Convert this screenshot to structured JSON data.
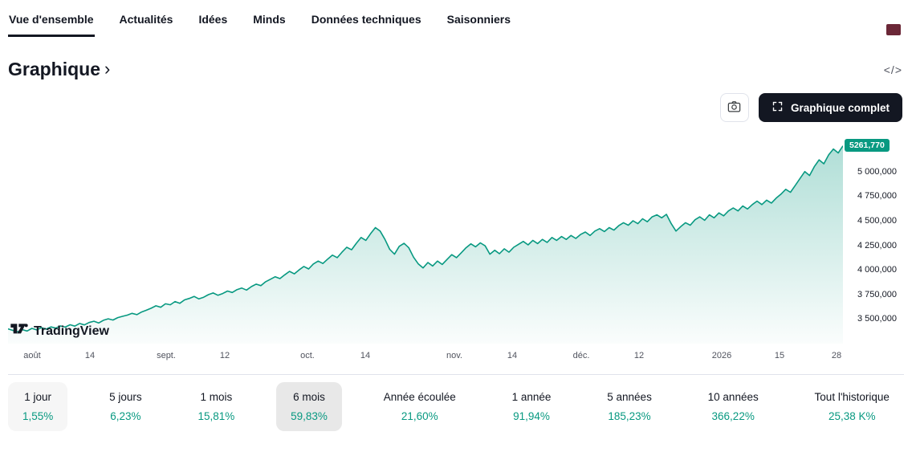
{
  "colors": {
    "accent": "#089981",
    "selected_bg": "#e8e8e8",
    "scroll_indicator": "#6b2737",
    "button_dark": "#131722"
  },
  "nav": {
    "tabs": [
      {
        "label": "Vue d'ensemble",
        "active": true
      },
      {
        "label": "Actualités",
        "active": false
      },
      {
        "label": "Idées",
        "active": false
      },
      {
        "label": "Minds",
        "active": false
      },
      {
        "label": "Données techniques",
        "active": false
      },
      {
        "label": "Saisonniers",
        "active": false
      }
    ]
  },
  "header": {
    "title": "Graphique",
    "chevron": "›",
    "code_icon": "</>"
  },
  "toolbar": {
    "camera_icon": "camera-icon",
    "full_chart_label": "Graphique complet"
  },
  "chart_data": {
    "type": "area",
    "watermark": "TradingView",
    "last_price": 5261.77,
    "last_price_label": "5261,770",
    "line_color": "#089981",
    "ylim": [
      3250,
      5390
    ],
    "grid": false,
    "y_ticks": [
      {
        "value": 5000,
        "label": "5 000,000"
      },
      {
        "value": 4750,
        "label": "4 750,000"
      },
      {
        "value": 4500,
        "label": "4 500,000"
      },
      {
        "value": 4250,
        "label": "4 250,000"
      },
      {
        "value": 4000,
        "label": "4 000,000"
      },
      {
        "value": 3750,
        "label": "3 750,000"
      },
      {
        "value": 3500,
        "label": "3 500,000"
      }
    ],
    "x_ticks": [
      {
        "label": "août",
        "pos": 0.029
      },
      {
        "label": "14",
        "pos": 0.098
      },
      {
        "label": "sept.",
        "pos": 0.189
      },
      {
        "label": "12",
        "pos": 0.26
      },
      {
        "label": "oct.",
        "pos": 0.359
      },
      {
        "label": "14",
        "pos": 0.428
      },
      {
        "label": "nov.",
        "pos": 0.535
      },
      {
        "label": "14",
        "pos": 0.604
      },
      {
        "label": "déc.",
        "pos": 0.687
      },
      {
        "label": "12",
        "pos": 0.756
      },
      {
        "label": "2026",
        "pos": 0.855
      },
      {
        "label": "15",
        "pos": 0.924
      },
      {
        "label": "28",
        "pos": 0.992
      }
    ],
    "values": [
      3400,
      3385,
      3370,
      3392,
      3378,
      3405,
      3390,
      3412,
      3398,
      3420,
      3408,
      3430,
      3418,
      3442,
      3428,
      3455,
      3440,
      3465,
      3478,
      3460,
      3488,
      3502,
      3490,
      3515,
      3528,
      3540,
      3558,
      3545,
      3572,
      3590,
      3610,
      3635,
      3620,
      3655,
      3645,
      3678,
      3660,
      3695,
      3710,
      3730,
      3705,
      3722,
      3748,
      3765,
      3742,
      3760,
      3785,
      3770,
      3800,
      3815,
      3795,
      3830,
      3855,
      3840,
      3880,
      3905,
      3930,
      3912,
      3950,
      3985,
      3960,
      4000,
      4035,
      4010,
      4060,
      4090,
      4065,
      4110,
      4150,
      4125,
      4180,
      4230,
      4205,
      4270,
      4330,
      4300,
      4370,
      4430,
      4395,
      4310,
      4210,
      4160,
      4240,
      4270,
      4225,
      4130,
      4060,
      4020,
      4075,
      4040,
      4090,
      4055,
      4105,
      4155,
      4125,
      4175,
      4225,
      4265,
      4235,
      4275,
      4245,
      4160,
      4200,
      4165,
      4215,
      4180,
      4230,
      4260,
      4290,
      4255,
      4300,
      4268,
      4310,
      4280,
      4330,
      4300,
      4340,
      4310,
      4350,
      4320,
      4360,
      4385,
      4350,
      4395,
      4420,
      4390,
      4430,
      4405,
      4450,
      4480,
      4455,
      4500,
      4470,
      4520,
      4490,
      4540,
      4560,
      4530,
      4565,
      4470,
      4395,
      4440,
      4480,
      4455,
      4510,
      4540,
      4505,
      4560,
      4530,
      4580,
      4550,
      4600,
      4630,
      4600,
      4650,
      4620,
      4665,
      4700,
      4665,
      4710,
      4680,
      4730,
      4770,
      4820,
      4790,
      4860,
      4930,
      5000,
      4960,
      5050,
      5120,
      5080,
      5170,
      5230,
      5190,
      5261.77
    ]
  },
  "periods": {
    "items": [
      {
        "label": "1 jour",
        "value": "1,55%",
        "state": "highlighted"
      },
      {
        "label": "5 jours",
        "value": "6,23%",
        "state": "normal"
      },
      {
        "label": "1 mois",
        "value": "15,81%",
        "state": "normal"
      },
      {
        "label": "6 mois",
        "value": "59,83%",
        "state": "selected"
      },
      {
        "label": "Année écoulée",
        "value": "21,60%",
        "state": "normal"
      },
      {
        "label": "1 année",
        "value": "91,94%",
        "state": "normal"
      },
      {
        "label": "5 années",
        "value": "185,23%",
        "state": "normal"
      },
      {
        "label": "10 années",
        "value": "366,22%",
        "state": "normal"
      },
      {
        "label": "Tout l'historique",
        "value": "25,38 K%",
        "state": "normal"
      }
    ]
  }
}
